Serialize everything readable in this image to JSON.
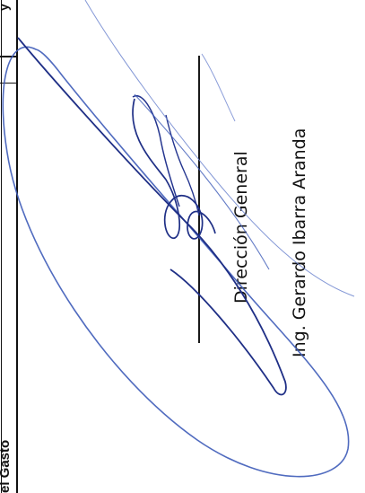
{
  "document": {
    "table_header_fragment": "el Gasto",
    "top_fragment": "y"
  },
  "signature_block": {
    "title": "Dirección General",
    "name": "Ing. Gerardo Ibarra Aranda"
  },
  "colors": {
    "ink": "#111111",
    "signature_ink": "#1f2f86",
    "signature_ink_light": "#4a67c0"
  }
}
